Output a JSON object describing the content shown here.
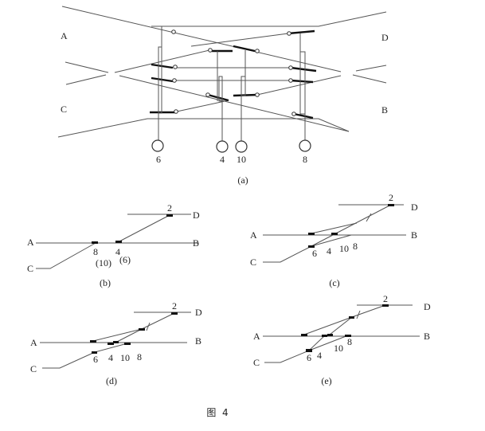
{
  "caption": "图  4",
  "panel_a": {
    "label": "(a)",
    "ends": {
      "a": "A",
      "b": "B",
      "c": "C",
      "d": "D"
    },
    "levers": [
      "6",
      "4",
      "10",
      "8"
    ]
  },
  "panel_b": {
    "label": "(b)",
    "ends": {
      "a": "A",
      "b": "B",
      "c": "C",
      "d": "D"
    },
    "switches": {
      "s2": "2",
      "s8": "8",
      "s4": "4",
      "s10": "(10)",
      "s6": "(6)"
    }
  },
  "panel_c": {
    "label": "(c)",
    "ends": {
      "a": "A",
      "b": "B",
      "c": "C",
      "d": "D"
    },
    "switches": {
      "s2": "2",
      "s6": "6",
      "s4": "4",
      "s10": "10",
      "s8": "8"
    }
  },
  "panel_d": {
    "label": "(d)",
    "ends": {
      "a": "A",
      "b": "B",
      "c": "C",
      "d": "D"
    },
    "switches": {
      "s2": "2",
      "s6": "6",
      "s4": "4",
      "s10": "10",
      "s8": "8"
    }
  },
  "panel_e": {
    "label": "(e)",
    "ends": {
      "a": "A",
      "b": "B",
      "c": "C",
      "d": "D"
    },
    "switches": {
      "s2": "2",
      "s6": "6",
      "s4": "4",
      "s10": "10",
      "s8": "8"
    }
  }
}
